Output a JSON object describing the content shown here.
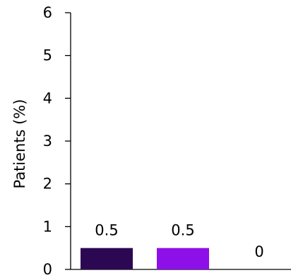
{
  "chart_data": {
    "type": "bar",
    "categories": [
      "",
      "",
      ""
    ],
    "values": [
      0.5,
      0.5,
      0
    ],
    "data_labels": [
      "0.5",
      "0.5",
      "0"
    ],
    "bar_colors": [
      "#2d0852",
      "#8e10e8",
      "#ffffff"
    ],
    "title": "",
    "xlabel": "",
    "ylabel": "Patients (%)",
    "ylim": [
      0,
      6
    ],
    "yticks": [
      "0",
      "1",
      "2",
      "3",
      "4",
      "5",
      "6"
    ],
    "grid": false,
    "legend": false
  }
}
